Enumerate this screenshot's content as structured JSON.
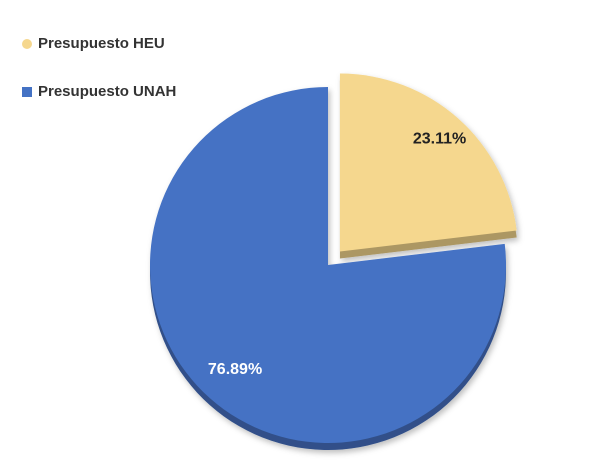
{
  "chart_data": {
    "type": "pie",
    "categories": [
      "Presupuesto HEU",
      "Presupuesto UNAH"
    ],
    "values": [
      23.11,
      76.89
    ],
    "value_labels": [
      "23.11%",
      "76.89%"
    ],
    "colors": [
      "#f5d78e",
      "#4472c4"
    ],
    "legend": "top-left"
  }
}
